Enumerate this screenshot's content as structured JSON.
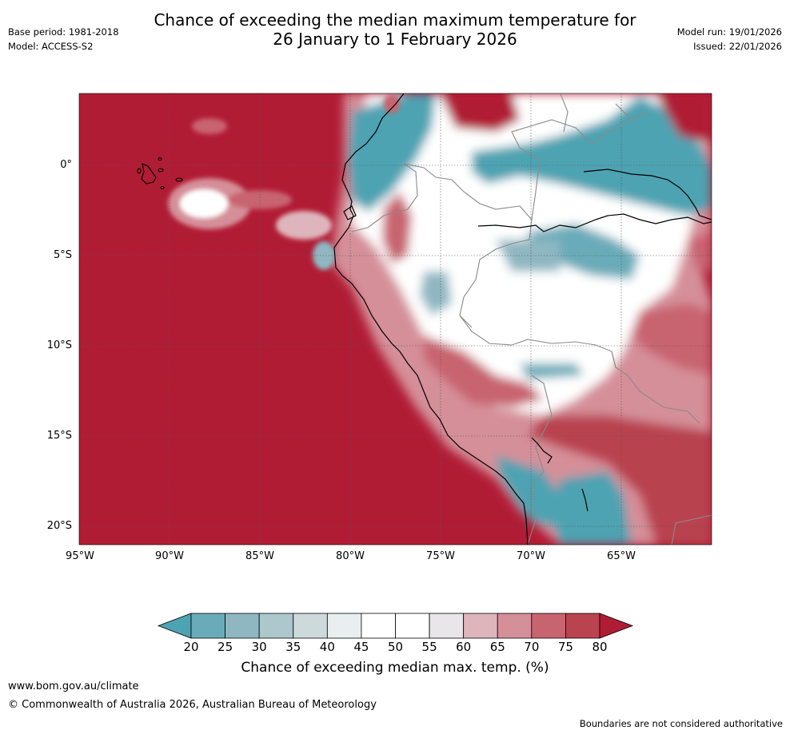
{
  "header": {
    "base_period": "Base period: 1981-2018",
    "model": "Model: ACCESS-S2",
    "title_line1": "Chance of exceeding the median maximum temperature for",
    "title_line2": "26 January to 1 February 2026",
    "model_run": "Model run: 19/01/2026",
    "issued": "Issued: 22/01/2026"
  },
  "map": {
    "lat_labels": [
      "0°",
      "5°S",
      "10°S",
      "15°S",
      "20°S"
    ],
    "lon_labels": [
      "95°W",
      "90°W",
      "85°W",
      "80°W",
      "75°W",
      "70°W",
      "65°W"
    ],
    "ocean_color": "#b11c35",
    "coast_color": "#000000",
    "border_color": "#8a8a8a"
  },
  "colorbar": {
    "ticks": [
      "20",
      "25",
      "30",
      "35",
      "40",
      "45",
      "50",
      "55",
      "60",
      "65",
      "70",
      "75",
      "80"
    ],
    "colors": [
      "#4da3b2",
      "#6aabb9",
      "#8fb7c2",
      "#acc8cc",
      "#cdd9db",
      "#e9eff1",
      "#ffffff",
      "#ffffff",
      "#e8e6e8",
      "#deb5bc",
      "#d58f99",
      "#c86470",
      "#b9434f",
      "#b11c35"
    ],
    "title": "Chance of exceeding median max. temp. (%)"
  },
  "footer": {
    "website": "www.bom.gov.au/climate",
    "copyright": "© Commonwealth of Australia 2026, Australian Bureau of Meteorology",
    "disclaimer": "Boundaries are not considered authoritative"
  }
}
